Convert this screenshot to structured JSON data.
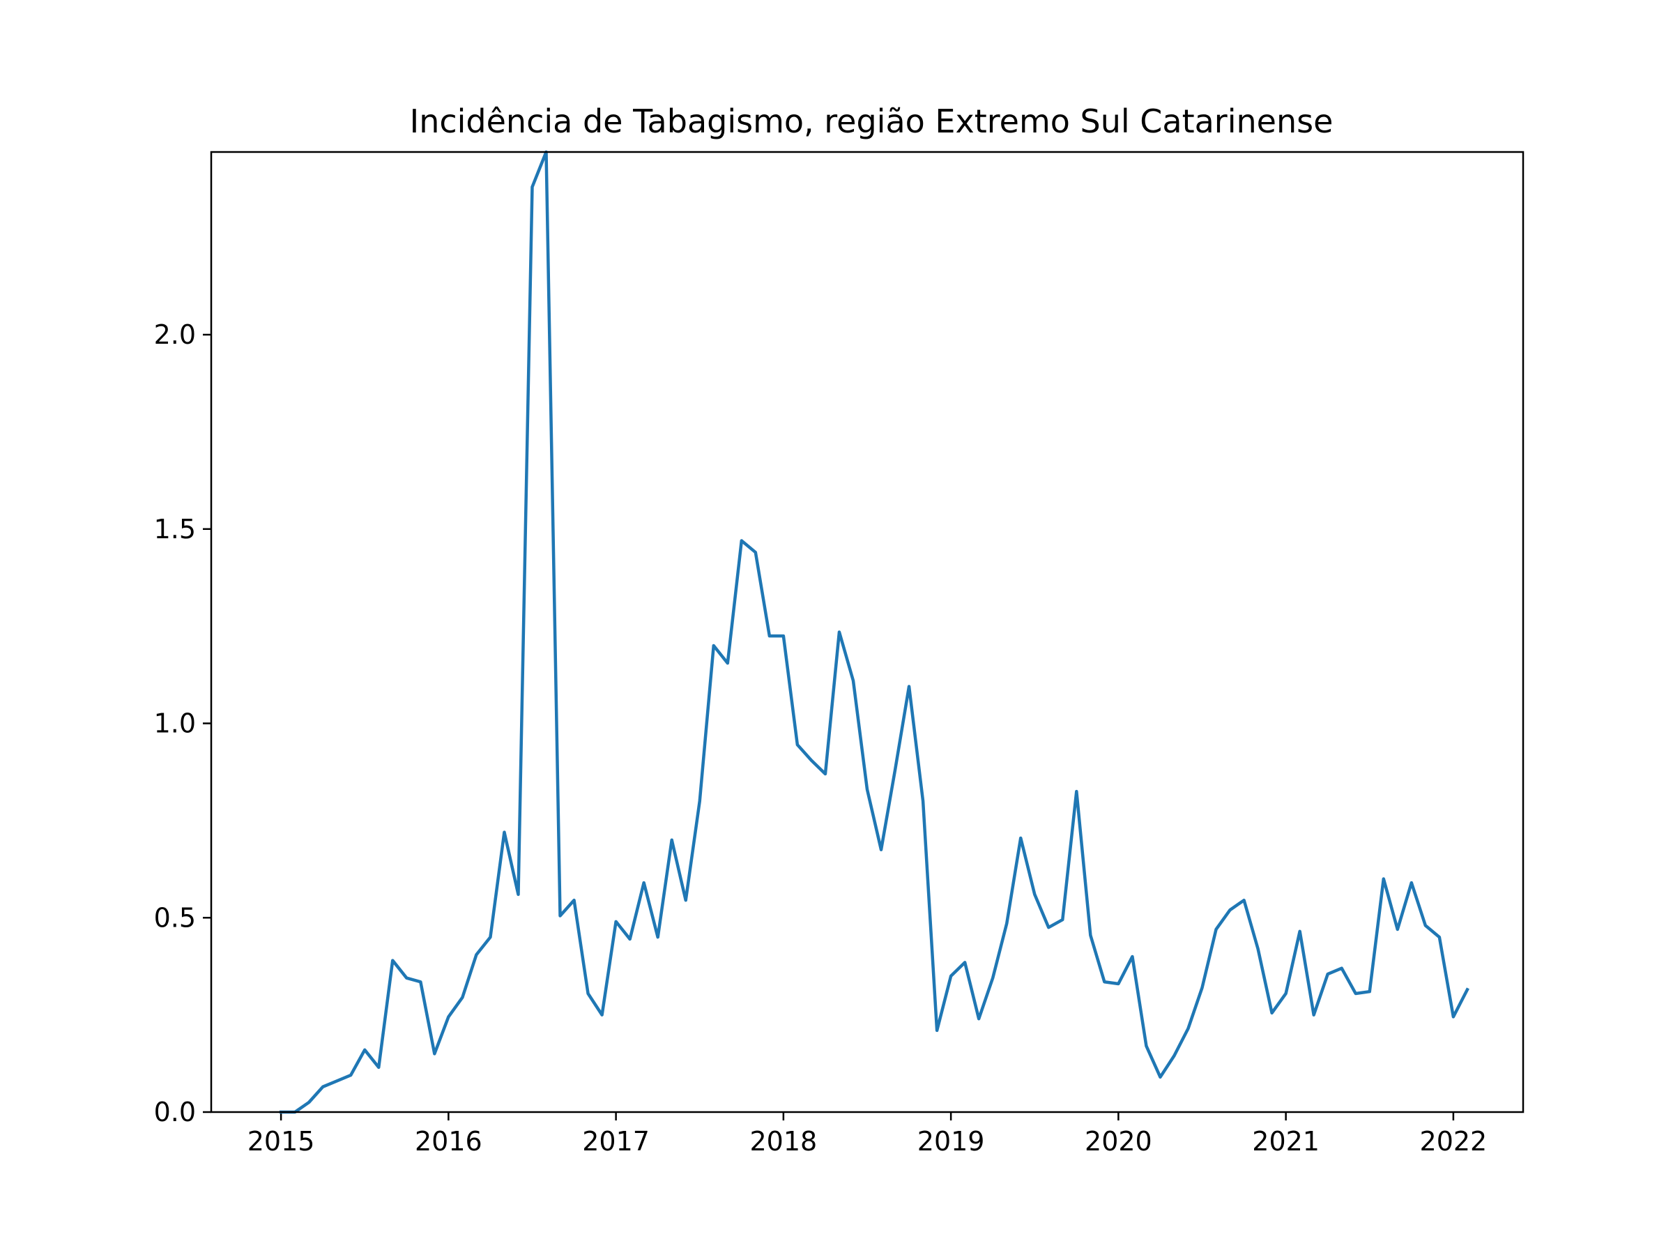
{
  "chart_data": {
    "type": "line",
    "title": "Incidência de Tabagismo, região Extremo Sul Catarinense",
    "xlabel": "",
    "ylabel": "",
    "x_ticks": [
      "2015",
      "2016",
      "2017",
      "2018",
      "2019",
      "2020",
      "2021",
      "2022"
    ],
    "y_ticks": [
      "0.0",
      "0.5",
      "1.0",
      "1.5",
      "2.0"
    ],
    "xlim": [
      "2014-08",
      "2022-06"
    ],
    "ylim": [
      0,
      2.47
    ],
    "grid": false,
    "legend": "none",
    "series": [
      {
        "color": "#1f77b4",
        "x": [
          "2015-01",
          "2015-02",
          "2015-03",
          "2015-04",
          "2015-05",
          "2015-06",
          "2015-07",
          "2015-08",
          "2015-09",
          "2015-10",
          "2015-11",
          "2015-12",
          "2016-01",
          "2016-02",
          "2016-03",
          "2016-04",
          "2016-05",
          "2016-06",
          "2016-07",
          "2016-08",
          "2016-09",
          "2016-10",
          "2016-11",
          "2016-12",
          "2017-01",
          "2017-02",
          "2017-03",
          "2017-04",
          "2017-05",
          "2017-06",
          "2017-07",
          "2017-08",
          "2017-09",
          "2017-10",
          "2017-11",
          "2017-12",
          "2018-01",
          "2018-02",
          "2018-03",
          "2018-04",
          "2018-05",
          "2018-06",
          "2018-07",
          "2018-08",
          "2018-09",
          "2018-10",
          "2018-11",
          "2018-12",
          "2019-01",
          "2019-02",
          "2019-03",
          "2019-04",
          "2019-05",
          "2019-06",
          "2019-07",
          "2019-08",
          "2019-09",
          "2019-10",
          "2019-11",
          "2019-12",
          "2020-01",
          "2020-02",
          "2020-03",
          "2020-04",
          "2020-05",
          "2020-06",
          "2020-07",
          "2020-08",
          "2020-09",
          "2020-10",
          "2020-11",
          "2020-12",
          "2021-01",
          "2021-02",
          "2021-03",
          "2021-04",
          "2021-05",
          "2021-06",
          "2021-07",
          "2021-08",
          "2021-09",
          "2021-10",
          "2021-11",
          "2021-12",
          "2022-01",
          "2022-02"
        ],
        "y": [
          0.0,
          0.0,
          0.025,
          0.065,
          0.08,
          0.095,
          0.16,
          0.115,
          0.39,
          0.345,
          0.335,
          0.15,
          0.245,
          0.295,
          0.405,
          0.45,
          0.72,
          0.56,
          2.38,
          2.47,
          0.505,
          0.545,
          0.305,
          0.25,
          0.49,
          0.445,
          0.59,
          0.45,
          0.7,
          0.545,
          0.8,
          1.2,
          1.155,
          1.47,
          1.44,
          1.225,
          1.225,
          0.945,
          0.905,
          0.87,
          1.235,
          1.11,
          0.83,
          0.675,
          0.88,
          1.095,
          0.8,
          0.21,
          0.35,
          0.385,
          0.24,
          0.345,
          0.485,
          0.705,
          0.56,
          0.475,
          0.495,
          0.825,
          0.455,
          0.335,
          0.33,
          0.4,
          0.17,
          0.09,
          0.145,
          0.215,
          0.32,
          0.47,
          0.52,
          0.545,
          0.42,
          0.255,
          0.305,
          0.465,
          0.25,
          0.355,
          0.37,
          0.305,
          0.31,
          0.6,
          0.47,
          0.59,
          0.48,
          0.45,
          0.245,
          0.315
        ]
      }
    ]
  }
}
